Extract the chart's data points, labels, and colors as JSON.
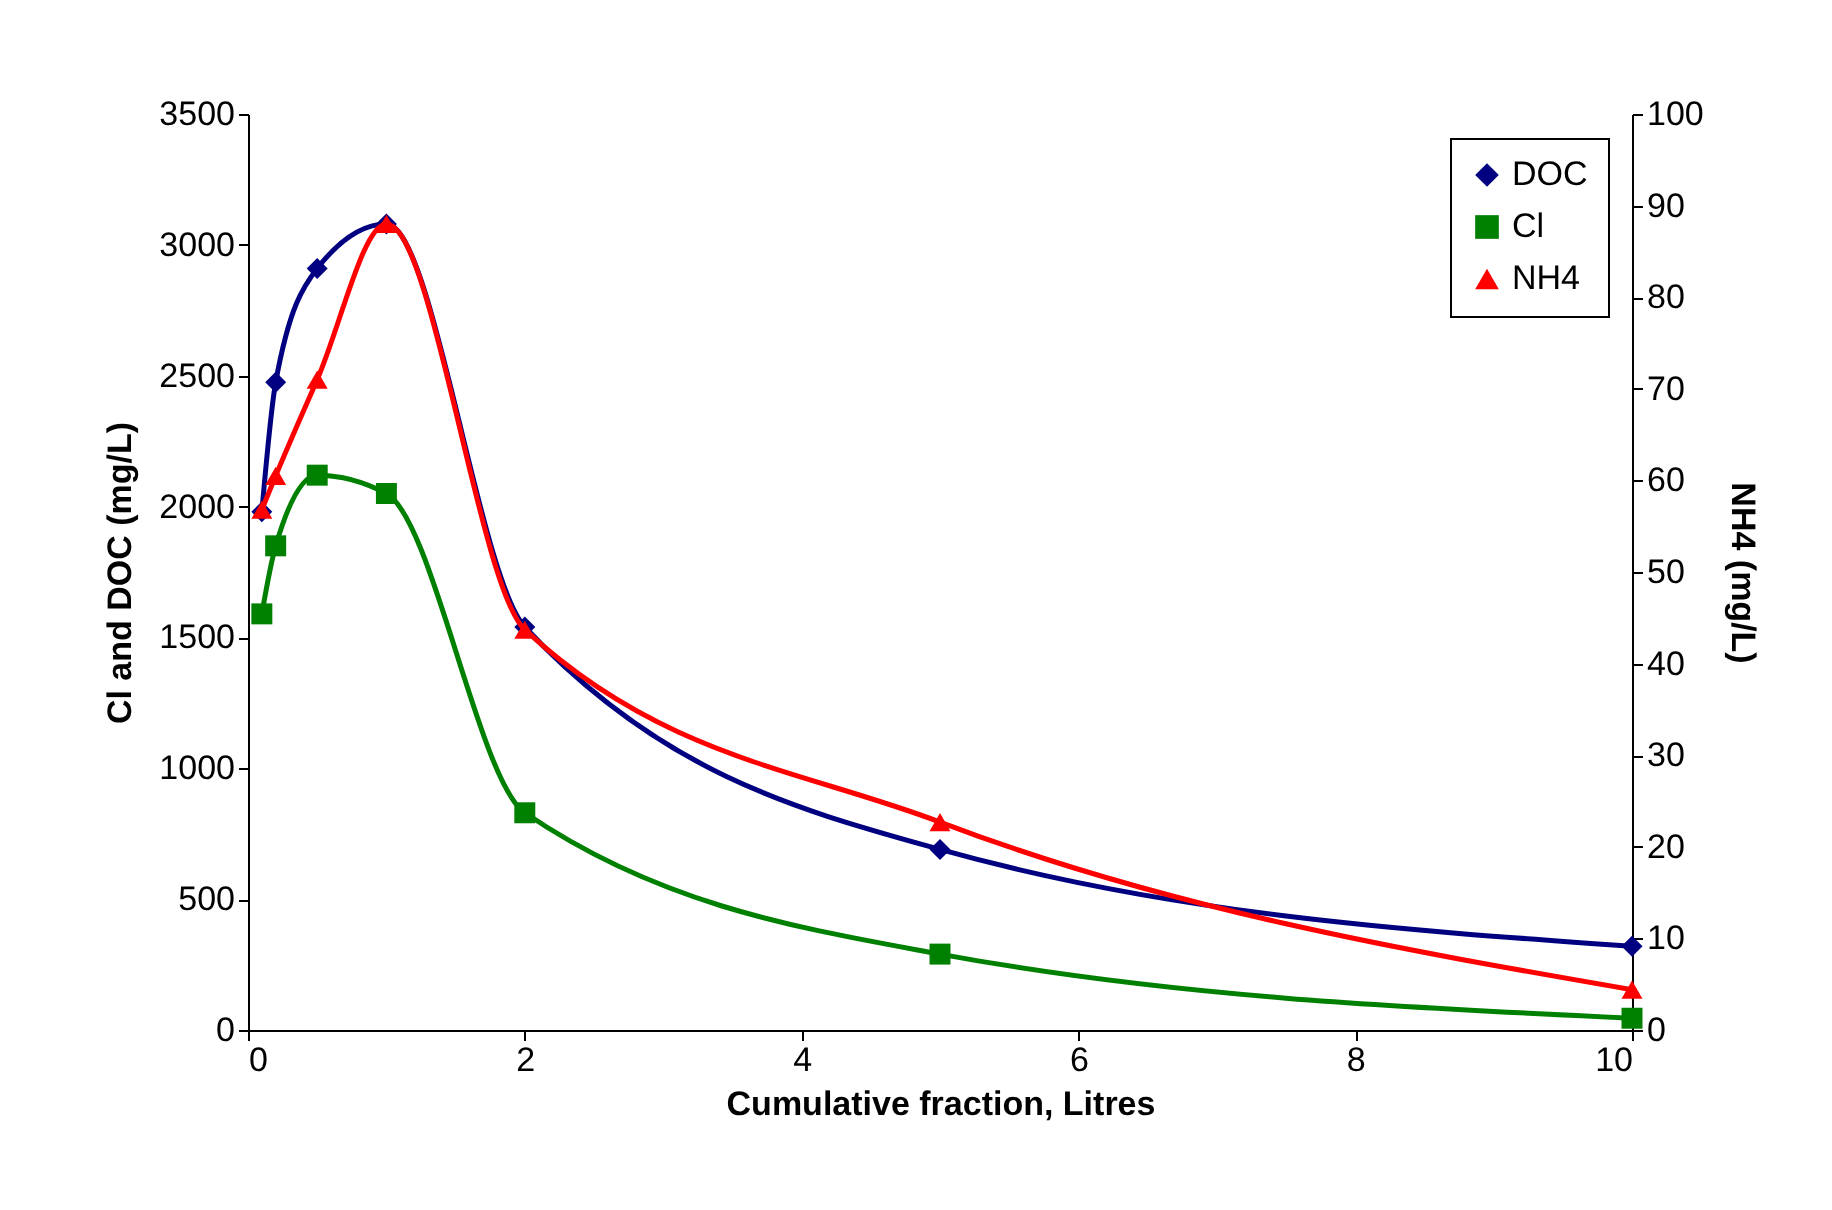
{
  "chart_data": {
    "type": "line",
    "xlabel": "Cumulative fraction, Litres",
    "ylabel": "Cl and DOC (mg/L)",
    "y2label": "NH4 (mg/L)",
    "x": [
      0.1,
      0.2,
      0.5,
      1,
      2,
      5,
      10
    ],
    "series": [
      {
        "name": "DOC",
        "color": "#000080",
        "marker": "diamond",
        "values": [
          1980,
          2475,
          2910,
          3080,
          1540,
          690,
          320
        ]
      },
      {
        "name": "Cl",
        "color": "#008000",
        "marker": "square",
        "values": [
          1590,
          1850,
          2120,
          2050,
          830,
          290,
          45
        ]
      },
      {
        "name": "NH4",
        "color": "#ff0000",
        "marker": "triangle",
        "axis": "y2",
        "values": [
          56.8,
          60.5,
          71,
          88,
          43.7,
          22.7,
          4.4
        ]
      }
    ],
    "xlim": [
      0,
      10
    ],
    "xticks": [
      0,
      2,
      4,
      6,
      8,
      10
    ],
    "ylim": [
      0,
      3500
    ],
    "yticks": [
      0,
      500,
      1000,
      1500,
      2000,
      2500,
      3000,
      3500
    ],
    "y2lim": [
      0,
      100
    ],
    "y2ticks": [
      0,
      10,
      20,
      30,
      40,
      50,
      60,
      70,
      80,
      90,
      100
    ],
    "grid": false,
    "legend": "top right"
  }
}
